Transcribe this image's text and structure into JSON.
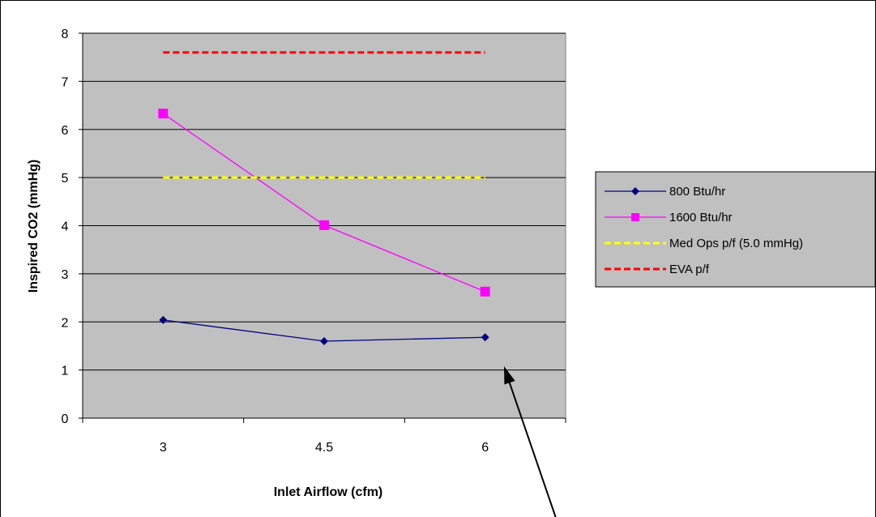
{
  "chart_data": {
    "type": "line",
    "categories": [
      "3",
      "4.5",
      "6"
    ],
    "xlabel": "Inlet Airflow (cfm)",
    "ylabel": "Inspired CO2 (mmHg)",
    "ylim": [
      0,
      8
    ],
    "yticks": [
      "0",
      "1",
      "2",
      "3",
      "4",
      "5",
      "6",
      "7",
      "8"
    ],
    "grid": true,
    "legend_position": "right",
    "plot_background": "#c0c0c0",
    "series": [
      {
        "name": "800 Btu/hr",
        "values": [
          2.04,
          1.6,
          1.68
        ],
        "color": "#000080",
        "marker": "diamond",
        "dash": false
      },
      {
        "name": "1600 Btu/hr",
        "values": [
          6.33,
          4.01,
          2.63
        ],
        "color": "#ff00ff",
        "marker": "square",
        "dash": false
      },
      {
        "name": "Med Ops p/f (5.0 mmHg)",
        "values": [
          5.0,
          5.0,
          5.0
        ],
        "color": "#ffff00",
        "marker": "none",
        "dash": true
      },
      {
        "name": "EVA p/f",
        "values": [
          7.6,
          7.6,
          7.6
        ],
        "color": "#ff0000",
        "marker": "none",
        "dash": true
      }
    ]
  },
  "annotation": {
    "type": "arrow",
    "color": "#000000"
  }
}
